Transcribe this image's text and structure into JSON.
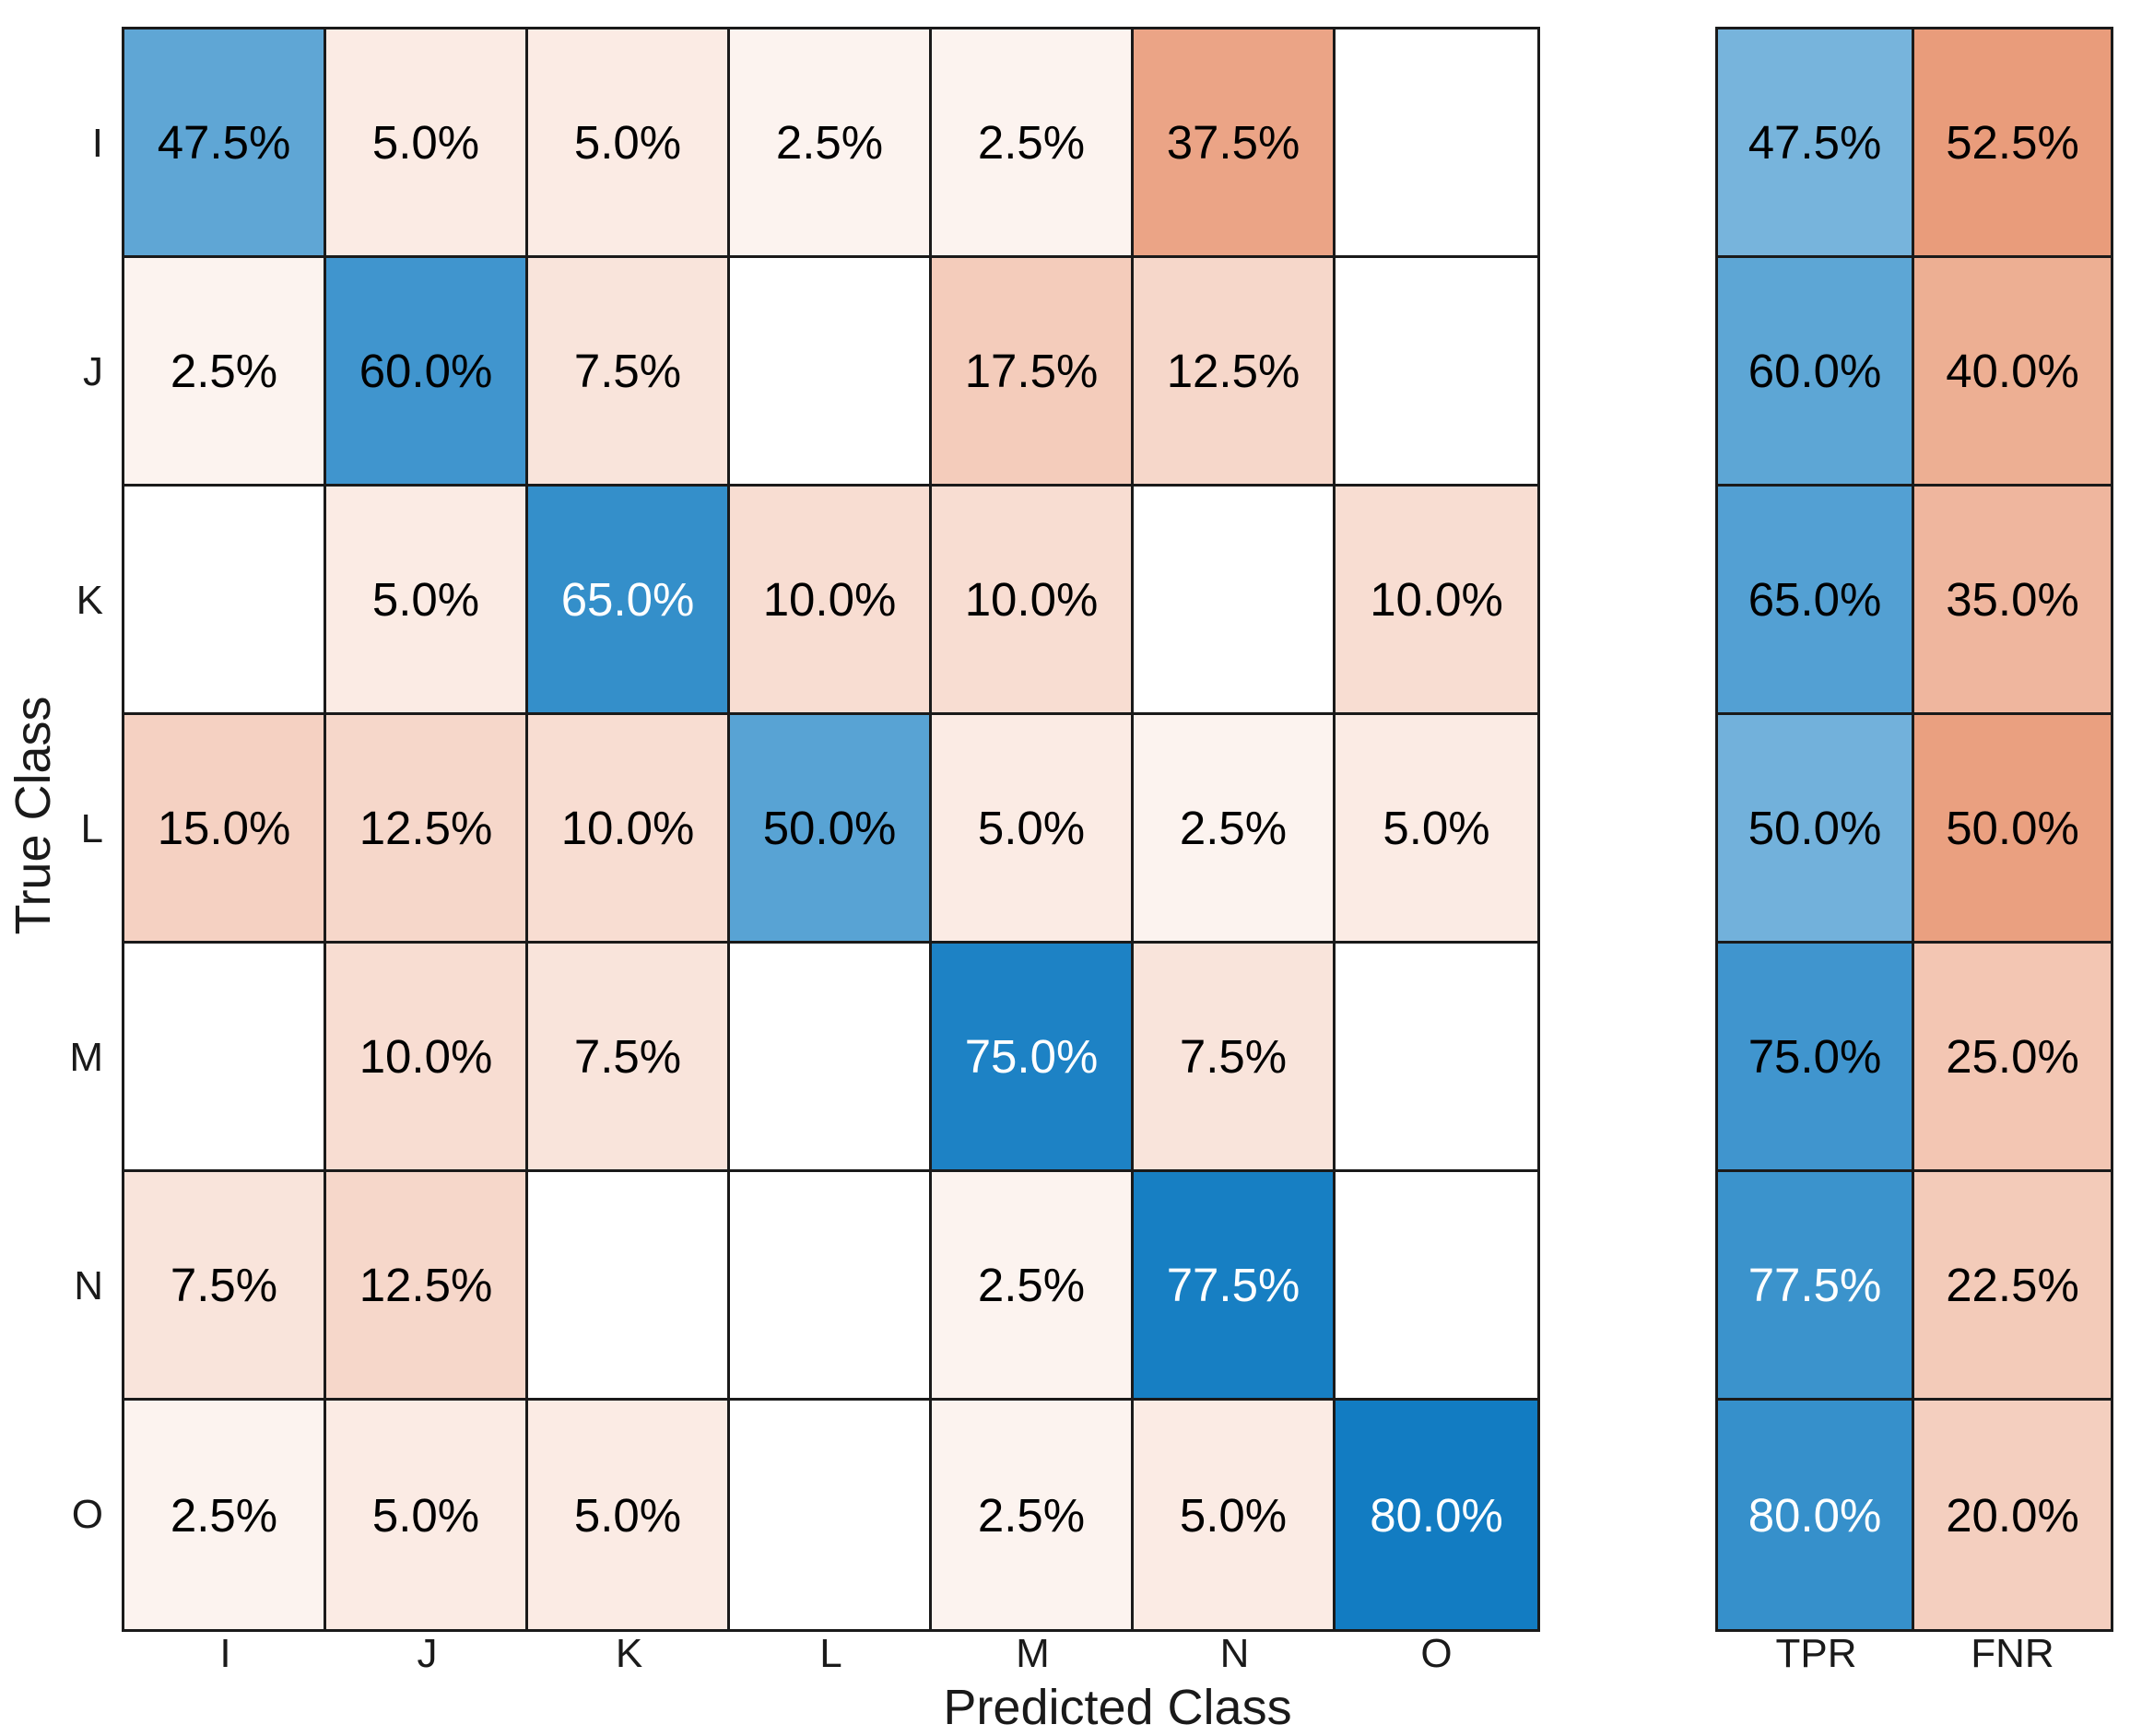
{
  "chart_data": {
    "type": "heatmap",
    "subtype": "confusion-matrix-with-row-summary",
    "title": "",
    "xlabel": "Predicted Class",
    "ylabel": "True Class",
    "classes": [
      "I",
      "J",
      "K",
      "L",
      "M",
      "N",
      "O"
    ],
    "matrix_percent": [
      [
        47.5,
        5.0,
        5.0,
        2.5,
        2.5,
        37.5,
        0.0
      ],
      [
        2.5,
        60.0,
        7.5,
        0.0,
        17.5,
        12.5,
        0.0
      ],
      [
        0.0,
        5.0,
        65.0,
        10.0,
        10.0,
        0.0,
        10.0
      ],
      [
        15.0,
        12.5,
        10.0,
        50.0,
        5.0,
        2.5,
        5.0
      ],
      [
        0.0,
        10.0,
        7.5,
        0.0,
        75.0,
        7.5,
        0.0
      ],
      [
        7.5,
        12.5,
        0.0,
        0.0,
        2.5,
        77.5,
        0.0
      ],
      [
        2.5,
        5.0,
        5.0,
        0.0,
        2.5,
        5.0,
        80.0
      ]
    ],
    "summary": {
      "columns": [
        "TPR",
        "FNR"
      ],
      "tpr_percent": [
        47.5,
        60.0,
        65.0,
        50.0,
        75.0,
        77.5,
        80.0
      ],
      "fnr_percent": [
        52.5,
        40.0,
        35.0,
        50.0,
        25.0,
        22.5,
        20.0
      ]
    },
    "value_format": "one-decimal-percent",
    "empty_cells_shown_blank": true,
    "legend": "none",
    "grid": "on",
    "colors": {
      "diagonal_base": "#0072BD",
      "off_diagonal_base": "#D95319",
      "empty": "#FFFFFF",
      "grid_line": "#1A1A1A",
      "text_dark": "#000000",
      "text_light": "#FFFFFF"
    },
    "color_scale": {
      "matrix_max_percent": 80,
      "summary_max_percent": 100,
      "gamma": 0.75,
      "max_blend": 0.93,
      "light_text_threshold": 0.755
    }
  }
}
